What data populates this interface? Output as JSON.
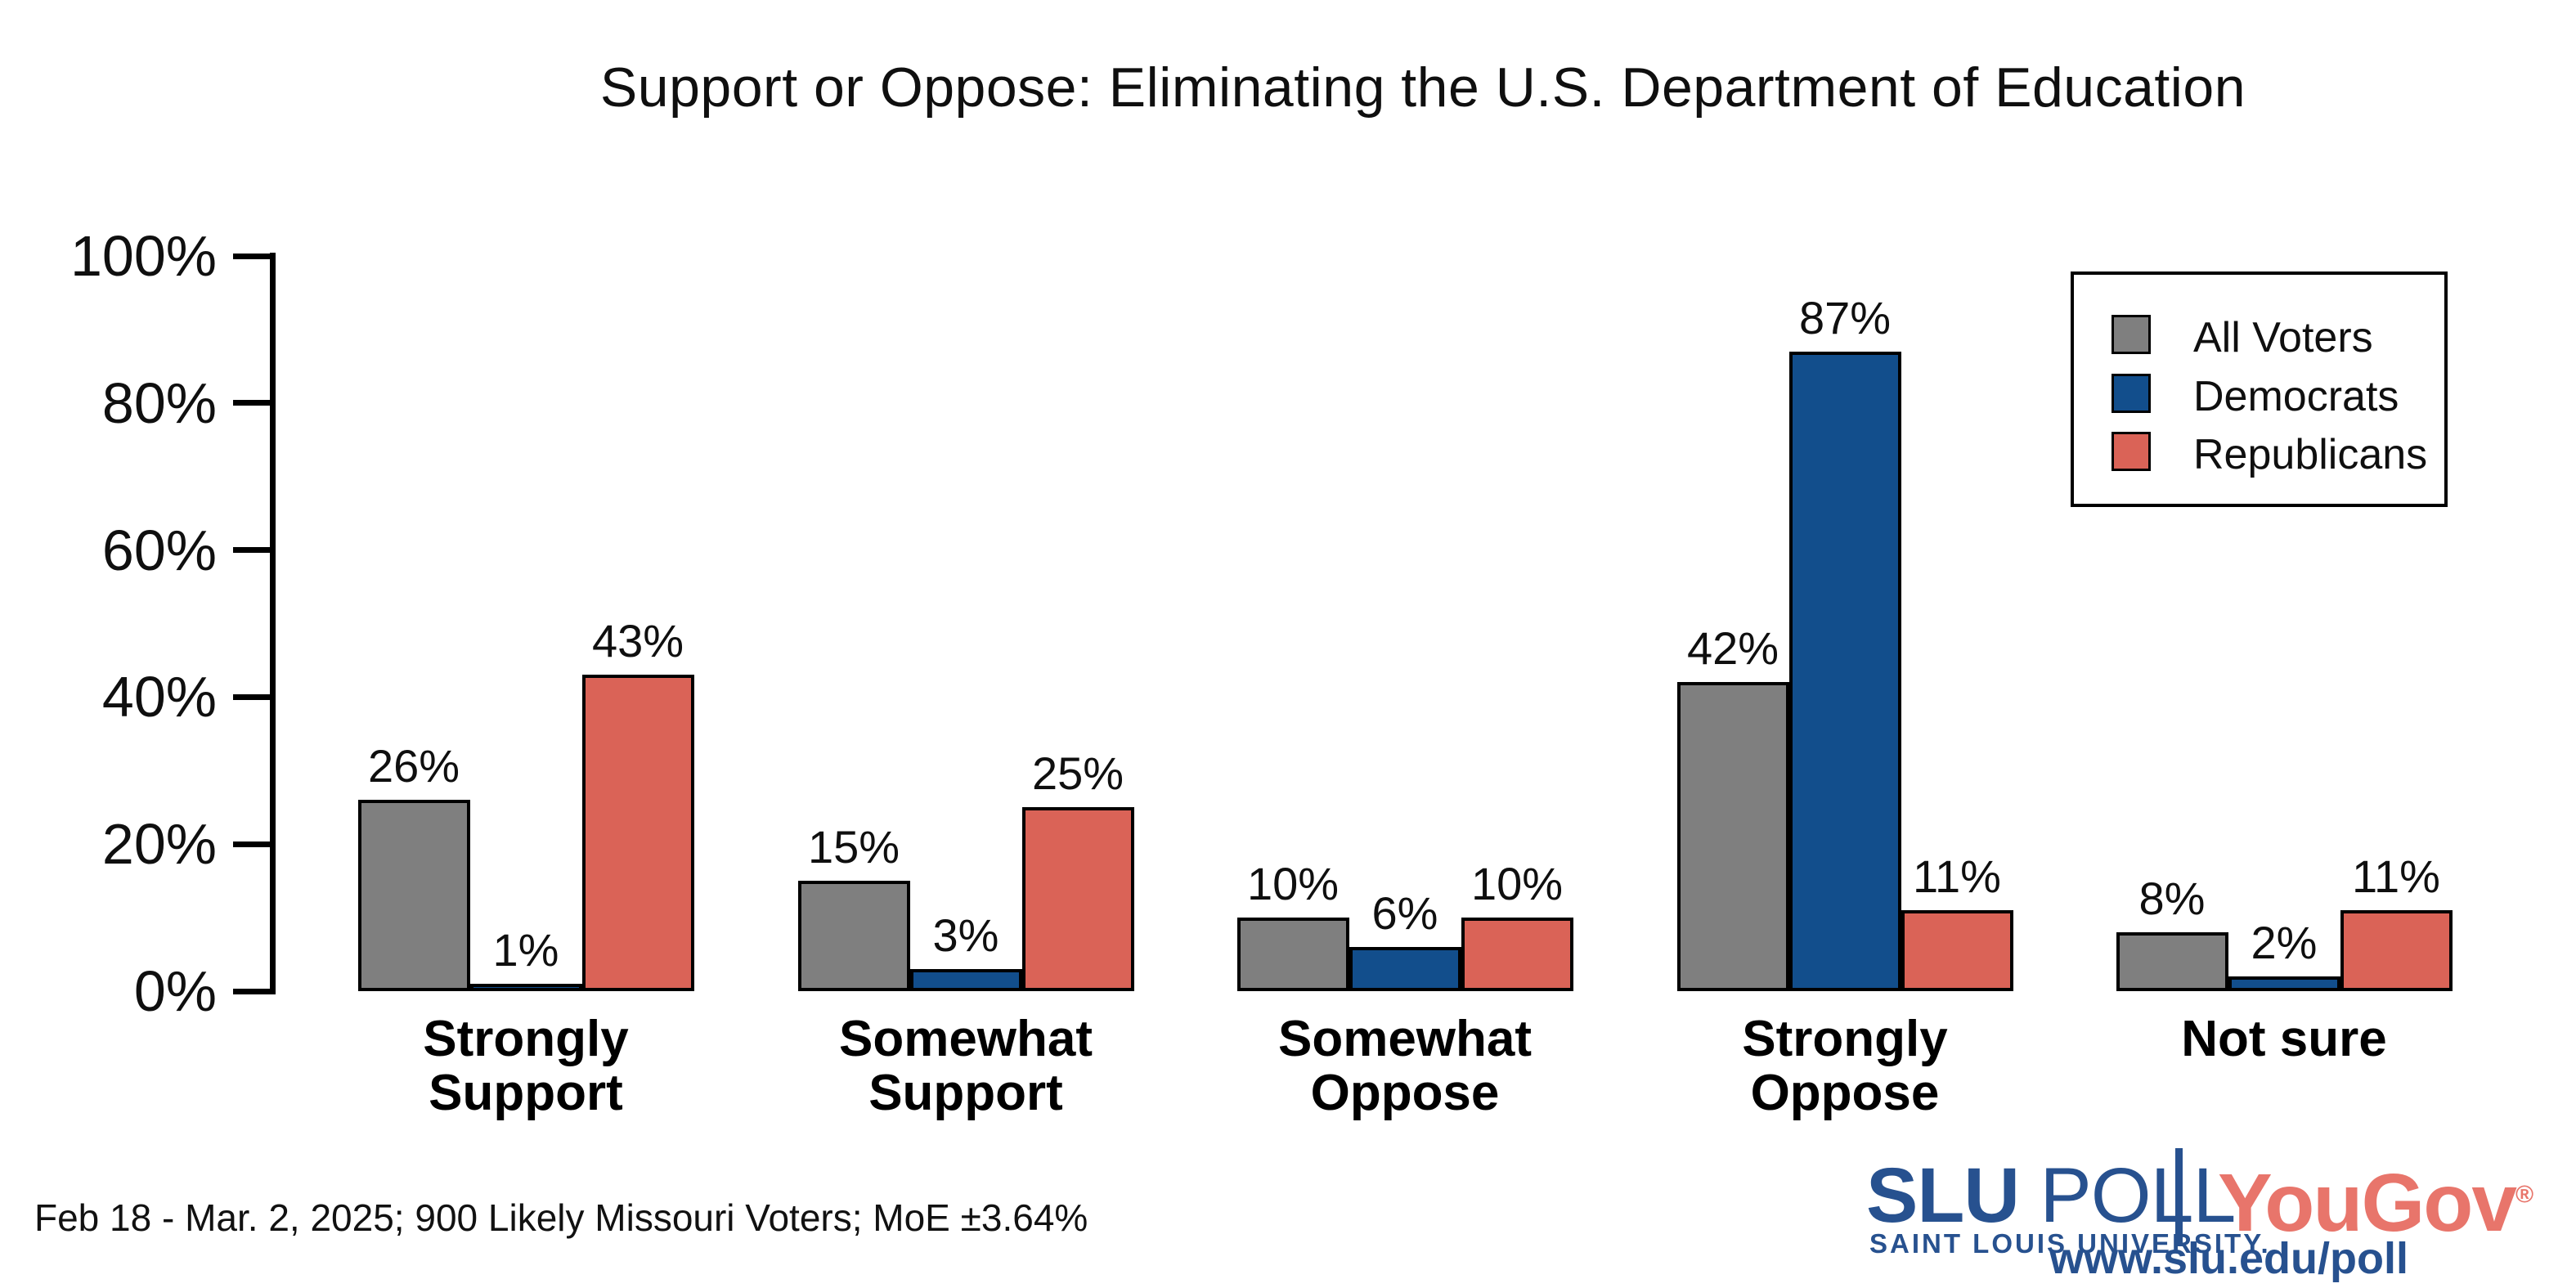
{
  "title": "Support or Oppose: Eliminating the U.S. Department of Education",
  "chart_data": {
    "type": "bar",
    "categories": [
      "Strongly Support",
      "Somewhat Support",
      "Somewhat Oppose",
      "Strongly Oppose",
      "Not sure"
    ],
    "category_label_lines": [
      [
        "Strongly",
        "Support"
      ],
      [
        "Somewhat",
        "Support"
      ],
      [
        "Somewhat",
        "Oppose"
      ],
      [
        "Strongly",
        "Oppose"
      ],
      [
        "Not sure"
      ]
    ],
    "series": [
      {
        "name": "All Voters",
        "color": "#7f7f7f",
        "values": [
          26,
          15,
          10,
          42,
          8
        ]
      },
      {
        "name": "Democrats",
        "color": "#124e8c",
        "values": [
          1,
          3,
          6,
          87,
          2
        ]
      },
      {
        "name": "Republicans",
        "color": "#da6357",
        "values": [
          43,
          25,
          10,
          11,
          11
        ]
      }
    ],
    "value_suffix": "%",
    "xlabel": "",
    "ylabel": "",
    "ylim": [
      0,
      100
    ],
    "yticks": [
      0,
      20,
      40,
      60,
      80,
      100
    ],
    "ytick_suffix": "%",
    "grid": false,
    "legend_position": "top-right",
    "bar_edge_color": "#000000",
    "axis_color": "#000000"
  },
  "footer": {
    "note": "Feb 18 - Mar. 2, 2025; 900 Likely Missouri Voters; MoE ±3.64%"
  },
  "branding": {
    "slu": "SLU",
    "poll": " POLL",
    "slu_sub": "SAINT LOUIS UNIVERSITY.",
    "yougov": "YouGov",
    "registered": "®",
    "url": "www.slu.edu/poll",
    "slu_blue": "#27518f",
    "yougov_red": "#e8756b"
  }
}
